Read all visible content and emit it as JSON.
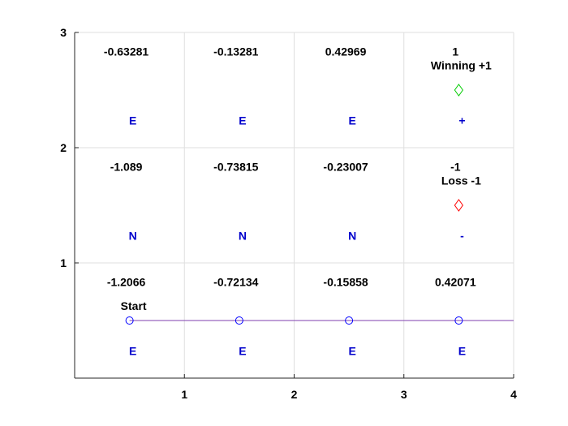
{
  "chart_data": {
    "type": "scatter",
    "title": "",
    "xlabel": "",
    "ylabel": "",
    "xlim": [
      0,
      4
    ],
    "ylim": [
      0,
      3
    ],
    "xticks": [
      1,
      2,
      3,
      4
    ],
    "yticks": [
      1,
      2,
      3
    ],
    "xtick_labels": [
      "1",
      "2",
      "3",
      "4"
    ],
    "ytick_labels": [
      "1",
      "2",
      "3"
    ],
    "grid": true,
    "cells": [
      {
        "x": 0.5,
        "y": 2.5,
        "value": "-0.63281",
        "action": "E"
      },
      {
        "x": 1.5,
        "y": 2.5,
        "value": "-0.13281",
        "action": "E"
      },
      {
        "x": 2.5,
        "y": 2.5,
        "value": "0.42969",
        "action": "E"
      },
      {
        "x": 3.5,
        "y": 2.5,
        "value": "1",
        "action": "+"
      },
      {
        "x": 0.5,
        "y": 1.5,
        "value": "-1.089",
        "action": "N"
      },
      {
        "x": 1.5,
        "y": 1.5,
        "value": "-0.73815",
        "action": "N"
      },
      {
        "x": 2.5,
        "y": 1.5,
        "value": "-0.23007",
        "action": "N"
      },
      {
        "x": 3.5,
        "y": 1.5,
        "value": "-1",
        "action": "-"
      },
      {
        "x": 0.5,
        "y": 0.5,
        "value": "-1.2066",
        "action": "E"
      },
      {
        "x": 1.5,
        "y": 0.5,
        "value": "-0.72134",
        "action": "E"
      },
      {
        "x": 2.5,
        "y": 0.5,
        "value": "-0.15858",
        "action": "E"
      },
      {
        "x": 3.5,
        "y": 0.5,
        "value": "0.42071",
        "action": "E"
      }
    ],
    "path": {
      "x": [
        0.5,
        1.5,
        2.5,
        3.5
      ],
      "y": [
        0.5,
        0.5,
        0.5,
        0.5
      ],
      "extends_to_x": 4,
      "line_color": "#7f3faf",
      "marker_color": "#0000ff"
    },
    "markers": [
      {
        "x": 3.5,
        "y": 2.5,
        "label": "Winning +1",
        "color": "#00cc00"
      },
      {
        "x": 3.5,
        "y": 1.5,
        "label": "Loss -1",
        "color": "#ff0000"
      }
    ],
    "start_label": {
      "x": 0.5,
      "y": 0.5,
      "label": "Start"
    },
    "colors": {
      "policy": "#0000cc",
      "axis": "#262626",
      "grid": "#dfdfdf"
    }
  }
}
